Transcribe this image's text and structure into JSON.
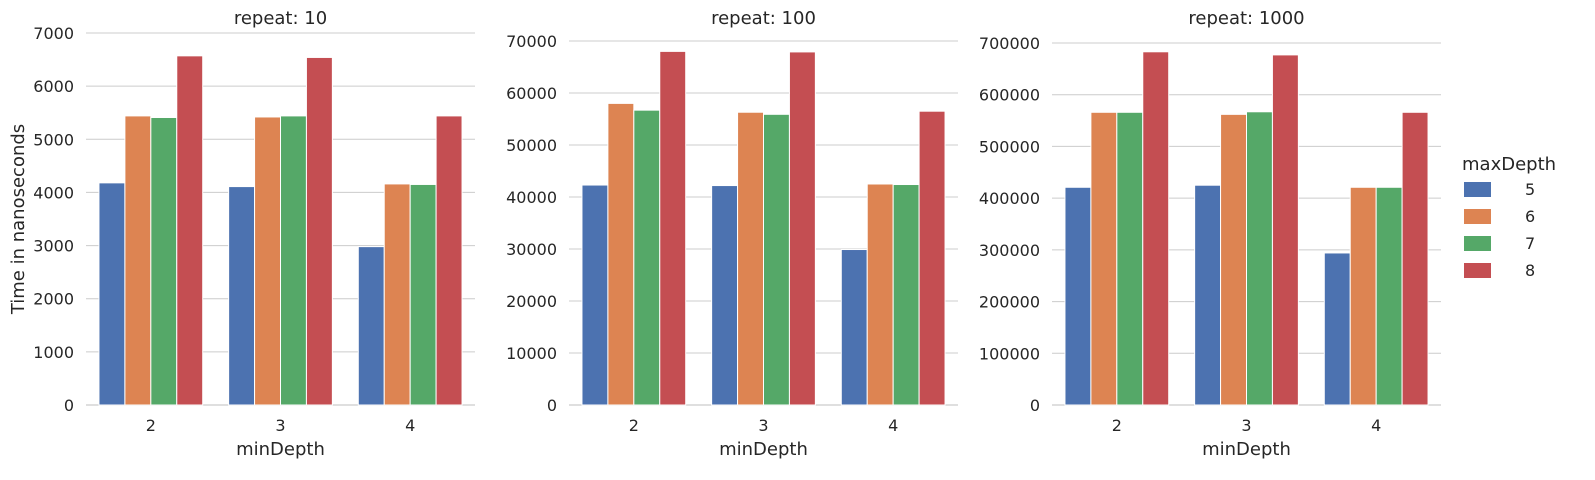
{
  "colors": {
    "series": [
      "#4c72b0",
      "#dd8452",
      "#55a868",
      "#c44e52"
    ],
    "grid": "#cccccc",
    "axis": "#cccccc",
    "text": "#262626"
  },
  "legend": {
    "title": "maxDepth",
    "placement": "right"
  },
  "chart_data": [
    {
      "type": "bar",
      "title": "repeat: 10",
      "xlabel": "minDepth",
      "ylabel": "Time in nanoseconds",
      "categories": [
        "2",
        "3",
        "4"
      ],
      "ylim": [
        0,
        7000
      ],
      "yticks": [
        0,
        1000,
        2000,
        3000,
        4000,
        5000,
        6000,
        7000
      ],
      "grid": true,
      "series": [
        {
          "name": "5",
          "values": [
            4180,
            4110,
            2980
          ]
        },
        {
          "name": "6",
          "values": [
            5440,
            5420,
            4160
          ]
        },
        {
          "name": "7",
          "values": [
            5410,
            5440,
            4150
          ]
        },
        {
          "name": "8",
          "values": [
            6570,
            6540,
            5440
          ]
        }
      ]
    },
    {
      "type": "bar",
      "title": "repeat: 100",
      "xlabel": "minDepth",
      "ylabel": "",
      "categories": [
        "2",
        "3",
        "4"
      ],
      "ylim": [
        0,
        70000
      ],
      "yticks": [
        0,
        10000,
        20000,
        30000,
        40000,
        50000,
        60000,
        70000
      ],
      "grid": true,
      "series": [
        {
          "name": "5",
          "values": [
            42300,
            42200,
            29900
          ]
        },
        {
          "name": "6",
          "values": [
            58000,
            56300,
            42500
          ]
        },
        {
          "name": "7",
          "values": [
            56700,
            55900,
            42400
          ]
        },
        {
          "name": "8",
          "values": [
            68000,
            67900,
            56500
          ]
        }
      ]
    },
    {
      "type": "bar",
      "title": "repeat: 1000",
      "xlabel": "minDepth",
      "ylabel": "",
      "categories": [
        "2",
        "3",
        "4"
      ],
      "ylim": [
        0,
        700000
      ],
      "yticks": [
        0,
        100000,
        200000,
        300000,
        400000,
        500000,
        600000,
        700000
      ],
      "grid": true,
      "series": [
        {
          "name": "5",
          "values": [
            421000,
            425000,
            294000
          ]
        },
        {
          "name": "6",
          "values": [
            566000,
            562000,
            421000
          ]
        },
        {
          "name": "7",
          "values": [
            566000,
            567000,
            421000
          ]
        },
        {
          "name": "8",
          "values": [
            683000,
            677000,
            566000
          ]
        }
      ]
    }
  ]
}
